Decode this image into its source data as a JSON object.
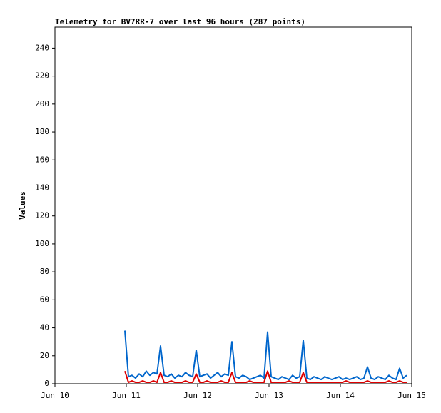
{
  "chart_data": {
    "type": "line",
    "title": "Telemetry for BV7RR-7 over last 96 hours (287 points)",
    "y_label": "Values",
    "x": [
      0.98,
      1.03,
      1.08,
      1.13,
      1.18,
      1.23,
      1.28,
      1.33,
      1.38,
      1.43,
      1.48,
      1.53,
      1.58,
      1.63,
      1.68,
      1.73,
      1.78,
      1.83,
      1.88,
      1.93,
      1.98,
      2.03,
      2.08,
      2.13,
      2.18,
      2.23,
      2.28,
      2.33,
      2.38,
      2.43,
      2.48,
      2.53,
      2.58,
      2.63,
      2.68,
      2.73,
      2.78,
      2.83,
      2.88,
      2.93,
      2.98,
      3.03,
      3.08,
      3.13,
      3.18,
      3.23,
      3.28,
      3.33,
      3.38,
      3.43,
      3.48,
      3.53,
      3.58,
      3.63,
      3.68,
      3.73,
      3.78,
      3.83,
      3.88,
      3.93,
      3.98,
      4.03,
      4.08,
      4.13,
      4.18,
      4.23,
      4.28,
      4.33,
      4.38,
      4.43,
      4.48,
      4.53,
      4.58,
      4.63,
      4.68,
      4.73,
      4.78,
      4.83,
      4.88,
      4.93
    ],
    "series": [
      {
        "color": "#0066cc",
        "values": [
          38,
          5,
          6,
          4,
          7,
          5,
          9,
          6,
          8,
          7,
          27,
          6,
          5,
          7,
          4,
          6,
          5,
          8,
          6,
          5,
          24,
          5,
          6,
          7,
          4,
          6,
          8,
          5,
          7,
          6,
          30,
          5,
          4,
          6,
          5,
          3,
          4,
          5,
          6,
          4,
          37,
          5,
          4,
          3,
          5,
          4,
          3,
          6,
          4,
          5,
          31,
          4,
          3,
          5,
          4,
          3,
          5,
          4,
          3,
          4,
          5,
          3,
          4,
          3,
          4,
          5,
          3,
          4,
          12,
          4,
          3,
          5,
          4,
          3,
          6,
          4,
          3,
          11,
          4,
          6
        ]
      },
      {
        "color": "#dd0000",
        "values": [
          9,
          1,
          2,
          1,
          1,
          2,
          1,
          1,
          2,
          1,
          8,
          1,
          1,
          2,
          1,
          1,
          1,
          2,
          1,
          1,
          7,
          1,
          1,
          2,
          1,
          1,
          1,
          2,
          1,
          1,
          8,
          1,
          1,
          1,
          1,
          2,
          1,
          1,
          1,
          1,
          9,
          1,
          1,
          1,
          1,
          1,
          2,
          1,
          1,
          1,
          8,
          1,
          1,
          1,
          1,
          1,
          1,
          1,
          1,
          1,
          1,
          1,
          2,
          1,
          1,
          1,
          1,
          1,
          2,
          1,
          1,
          1,
          1,
          1,
          2,
          1,
          1,
          2,
          1,
          1
        ]
      }
    ],
    "xlim": [
      0,
      5
    ],
    "xticks": [
      {
        "value": 0,
        "label": "Jun 10"
      },
      {
        "value": 1,
        "label": "Jun 11"
      },
      {
        "value": 2,
        "label": "Jun 12"
      },
      {
        "value": 3,
        "label": "Jun 13"
      },
      {
        "value": 4,
        "label": "Jun 14"
      },
      {
        "value": 5,
        "label": "Jun 15"
      }
    ],
    "ylim": [
      0,
      255
    ],
    "yticks": [
      0,
      20,
      40,
      60,
      80,
      100,
      120,
      140,
      160,
      180,
      200,
      220,
      240
    ]
  }
}
